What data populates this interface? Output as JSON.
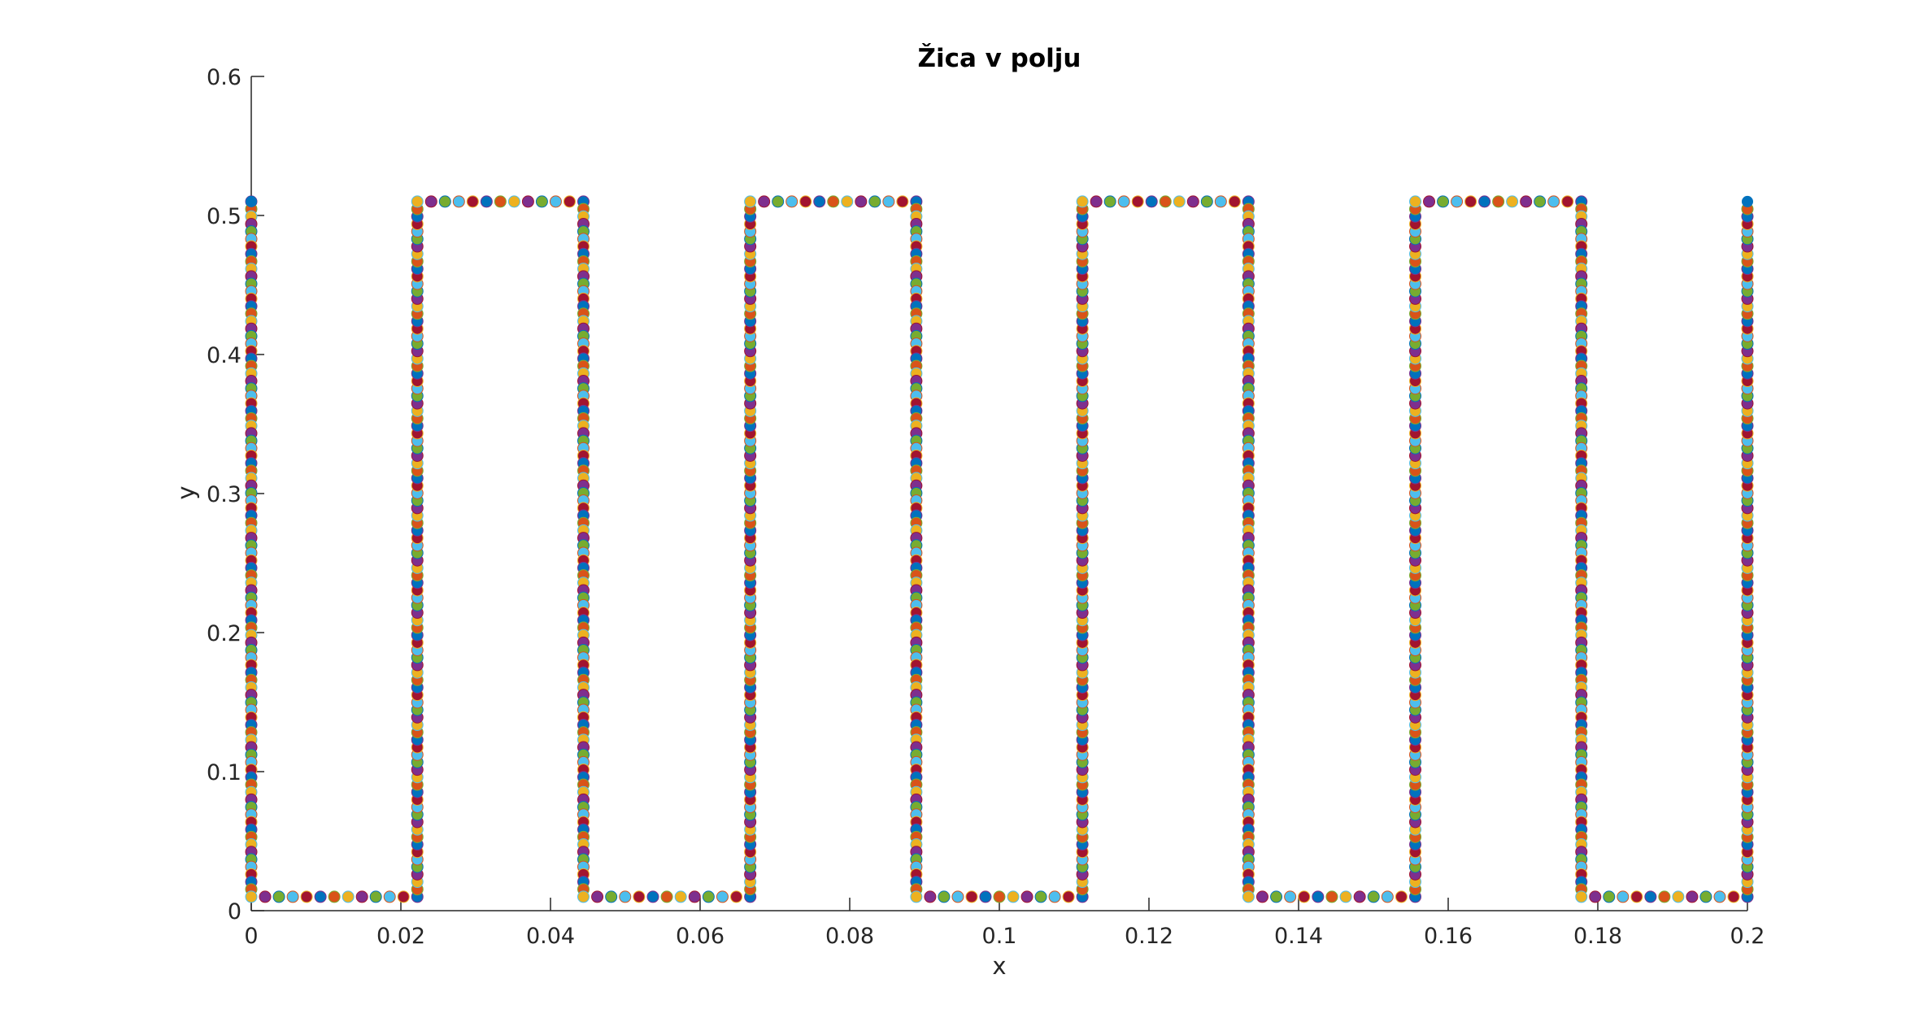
{
  "chart_data": {
    "type": "scatter",
    "title": "Žica v polju",
    "xlabel": "x",
    "ylabel": "y",
    "xlim": [
      0,
      0.2
    ],
    "ylim": [
      0,
      0.6
    ],
    "x_ticks": [
      "0",
      "0.02",
      "0.04",
      "0.06",
      "0.08",
      "0.1",
      "0.12",
      "0.14",
      "0.16",
      "0.18",
      "0.2"
    ],
    "y_ticks": [
      "0",
      "0.1",
      "0.2",
      "0.3",
      "0.4",
      "0.5",
      "0.6"
    ],
    "grid": false,
    "marker": "filled-circle",
    "series": [
      {
        "path_vertices": [
          [
            0,
            0.51
          ],
          [
            0,
            0.01
          ],
          [
            0.0222,
            0.01
          ],
          [
            0.0222,
            0.51
          ],
          [
            0.0444,
            0.51
          ],
          [
            0.0444,
            0.01
          ],
          [
            0.0667,
            0.01
          ],
          [
            0.0667,
            0.51
          ],
          [
            0.0889,
            0.51
          ],
          [
            0.0889,
            0.01
          ],
          [
            0.1111,
            0.01
          ],
          [
            0.1111,
            0.51
          ],
          [
            0.1333,
            0.51
          ],
          [
            0.1333,
            0.01
          ],
          [
            0.1556,
            0.01
          ],
          [
            0.1556,
            0.51
          ],
          [
            0.1778,
            0.51
          ],
          [
            0.1778,
            0.01
          ],
          [
            0.2,
            0.01
          ],
          [
            0.2,
            0.51
          ]
        ],
        "point_spacing": 0.0012
      }
    ],
    "colors": [
      "#0072bd",
      "#d95319",
      "#edb120",
      "#7e2f8e",
      "#77ac30",
      "#4dbeee",
      "#a2142f"
    ],
    "axis_color": "#262626"
  }
}
